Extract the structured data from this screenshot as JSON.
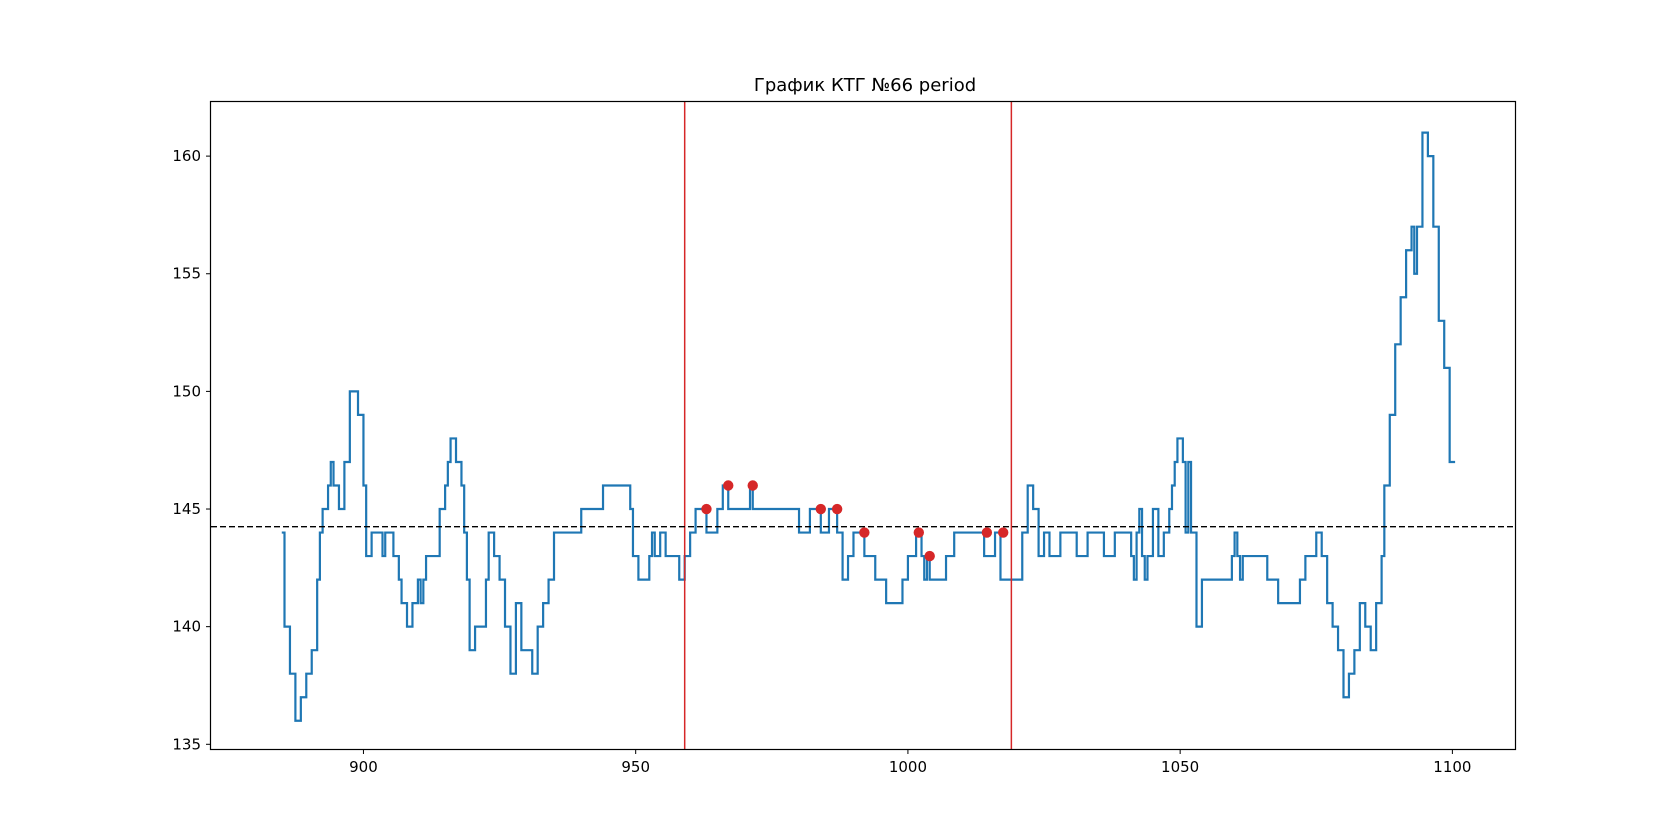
{
  "chart_data": {
    "type": "line",
    "title": "График КТГ №66 period",
    "xlabel": "",
    "ylabel": "",
    "xlim": [
      872,
      1111.5
    ],
    "ylim": [
      134.8,
      162.3
    ],
    "x_ticks": [
      900,
      950,
      1000,
      1050,
      1100
    ],
    "y_ticks": [
      135,
      140,
      145,
      150,
      155,
      160
    ],
    "grid": false,
    "series": [
      {
        "color": "#1f77b4",
        "step": true,
        "points": [
          [
            885,
            144
          ],
          [
            885.5,
            140
          ],
          [
            886.5,
            138
          ],
          [
            887.5,
            136
          ],
          [
            888.5,
            137
          ],
          [
            889.5,
            138
          ],
          [
            890.5,
            139
          ],
          [
            891.5,
            142
          ],
          [
            892,
            144
          ],
          [
            892.5,
            145
          ],
          [
            893.5,
            146
          ],
          [
            894,
            147
          ],
          [
            894.5,
            146
          ],
          [
            895.5,
            145
          ],
          [
            896.5,
            147
          ],
          [
            897.5,
            150
          ],
          [
            899,
            149
          ],
          [
            900,
            146
          ],
          [
            900.5,
            143
          ],
          [
            901.5,
            144
          ],
          [
            903.5,
            143
          ],
          [
            904,
            144
          ],
          [
            905.5,
            143
          ],
          [
            906.5,
            142
          ],
          [
            907,
            141
          ],
          [
            908,
            140
          ],
          [
            909,
            141
          ],
          [
            910,
            142
          ],
          [
            910.5,
            141
          ],
          [
            911,
            142
          ],
          [
            911.5,
            143
          ],
          [
            914,
            145
          ],
          [
            915,
            146
          ],
          [
            915.5,
            147
          ],
          [
            916,
            148
          ],
          [
            917,
            147
          ],
          [
            918,
            146
          ],
          [
            918.5,
            144
          ],
          [
            919,
            142
          ],
          [
            919.5,
            139
          ],
          [
            920.5,
            140
          ],
          [
            922.5,
            142
          ],
          [
            923,
            144
          ],
          [
            924,
            143
          ],
          [
            925,
            142
          ],
          [
            926,
            140
          ],
          [
            927,
            138
          ],
          [
            928,
            141
          ],
          [
            929,
            139
          ],
          [
            931,
            138
          ],
          [
            932,
            140
          ],
          [
            933,
            141
          ],
          [
            934,
            142
          ],
          [
            935,
            144
          ],
          [
            940,
            145
          ],
          [
            944,
            146
          ],
          [
            949,
            145
          ],
          [
            949.5,
            143
          ],
          [
            950.5,
            142
          ],
          [
            952.5,
            143
          ],
          [
            953,
            144
          ],
          [
            953.5,
            143
          ],
          [
            954.5,
            144
          ],
          [
            955.5,
            143
          ],
          [
            958,
            142
          ],
          [
            959,
            143
          ],
          [
            960,
            144
          ],
          [
            961,
            145
          ],
          [
            963,
            144
          ],
          [
            965,
            145
          ],
          [
            966,
            146
          ],
          [
            967,
            145
          ],
          [
            971,
            146
          ],
          [
            971.5,
            145
          ],
          [
            980,
            144
          ],
          [
            982,
            145
          ],
          [
            984,
            144
          ],
          [
            985.5,
            145
          ],
          [
            987,
            144
          ],
          [
            988,
            142
          ],
          [
            989,
            143
          ],
          [
            990,
            144
          ],
          [
            992,
            143
          ],
          [
            994,
            142
          ],
          [
            996,
            141
          ],
          [
            999,
            142
          ],
          [
            1000,
            143
          ],
          [
            1001.5,
            144
          ],
          [
            1002.5,
            143
          ],
          [
            1003,
            142
          ],
          [
            1003.5,
            143
          ],
          [
            1004,
            142
          ],
          [
            1007,
            143
          ],
          [
            1008.5,
            144
          ],
          [
            1014,
            143
          ],
          [
            1016,
            144
          ],
          [
            1017,
            142
          ],
          [
            1021,
            144
          ],
          [
            1022,
            146
          ],
          [
            1023,
            145
          ],
          [
            1024,
            143
          ],
          [
            1025,
            144
          ],
          [
            1026,
            143
          ],
          [
            1028,
            144
          ],
          [
            1031,
            143
          ],
          [
            1033,
            144
          ],
          [
            1036,
            143
          ],
          [
            1038,
            144
          ],
          [
            1041,
            143
          ],
          [
            1041.5,
            142
          ],
          [
            1042,
            144
          ],
          [
            1042.5,
            145
          ],
          [
            1043,
            143
          ],
          [
            1043.5,
            142
          ],
          [
            1044,
            143
          ],
          [
            1045,
            145
          ],
          [
            1046,
            143
          ],
          [
            1047,
            144
          ],
          [
            1048,
            145
          ],
          [
            1048.5,
            146
          ],
          [
            1049,
            147
          ],
          [
            1049.5,
            148
          ],
          [
            1050.5,
            147
          ],
          [
            1051,
            144
          ],
          [
            1051.5,
            147
          ],
          [
            1052,
            144
          ],
          [
            1053,
            140
          ],
          [
            1054,
            142
          ],
          [
            1059.5,
            143
          ],
          [
            1060,
            144
          ],
          [
            1060.5,
            143
          ],
          [
            1061,
            142
          ],
          [
            1061.5,
            143
          ],
          [
            1066,
            142
          ],
          [
            1068,
            141
          ],
          [
            1072,
            142
          ],
          [
            1073,
            143
          ],
          [
            1075,
            144
          ],
          [
            1076,
            143
          ],
          [
            1077,
            141
          ],
          [
            1078,
            140
          ],
          [
            1079,
            139
          ],
          [
            1080,
            137
          ],
          [
            1081,
            138
          ],
          [
            1082,
            139
          ],
          [
            1083,
            141
          ],
          [
            1084,
            140
          ],
          [
            1085,
            139
          ],
          [
            1086,
            141
          ],
          [
            1087,
            143
          ],
          [
            1087.5,
            146
          ],
          [
            1088.5,
            149
          ],
          [
            1089.5,
            152
          ],
          [
            1090.5,
            154
          ],
          [
            1091.5,
            156
          ],
          [
            1092.5,
            157
          ],
          [
            1093,
            155
          ],
          [
            1093.5,
            157
          ],
          [
            1094.5,
            161
          ],
          [
            1095.5,
            160
          ],
          [
            1096.5,
            157
          ],
          [
            1097.5,
            153
          ],
          [
            1098.5,
            151
          ],
          [
            1099.5,
            147
          ],
          [
            1100.5,
            147
          ]
        ]
      }
    ],
    "scatter": {
      "color": "#d62728",
      "points": [
        [
          963,
          145
        ],
        [
          967,
          146
        ],
        [
          971.5,
          146
        ],
        [
          984,
          145
        ],
        [
          987,
          145
        ],
        [
          992,
          144
        ],
        [
          1002,
          144
        ],
        [
          1004,
          143
        ],
        [
          1014.5,
          144
        ],
        [
          1017.5,
          144
        ]
      ]
    },
    "vlines": {
      "color": "#d62728",
      "x": [
        959,
        1019
      ]
    },
    "hline": {
      "color": "#000000",
      "style": "dashed",
      "y": 144.25
    }
  }
}
